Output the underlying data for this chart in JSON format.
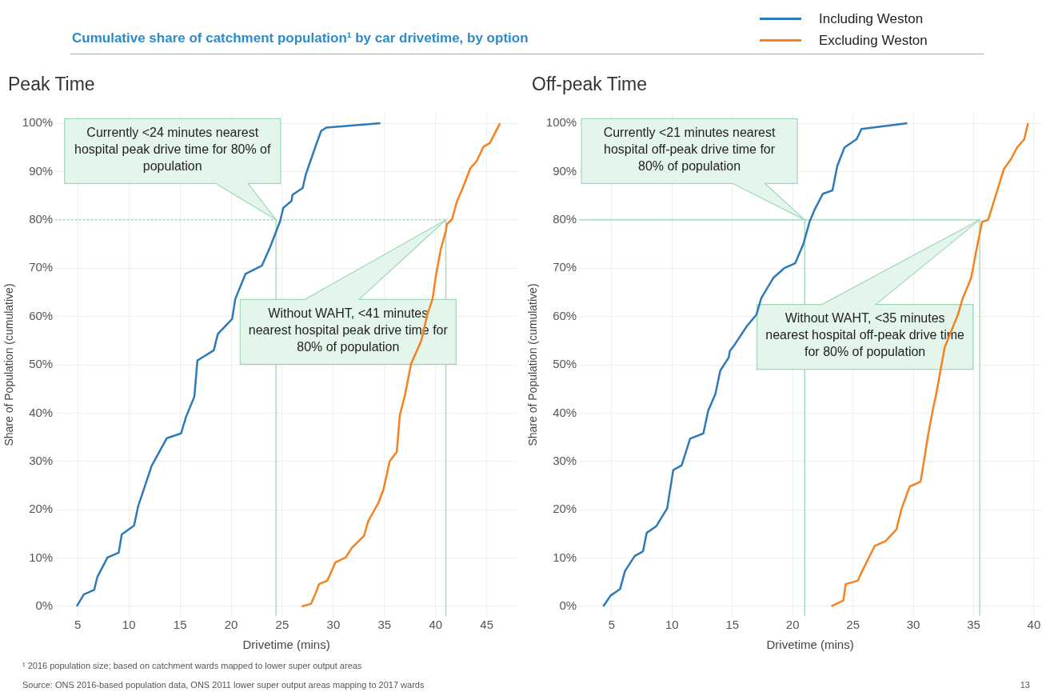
{
  "chart_data": [
    {
      "type": "line",
      "title": "Cumulative share of catchment population¹ by car drivetime, by option",
      "subtitle": "Peak Time",
      "xlabel": "Drivetime (mins)",
      "ylabel": "Share of Population (cumulative)",
      "series": [
        {
          "name": "Including Weston",
          "color": "#2e7ab8",
          "x": [
            4.9,
            5.6,
            6.6,
            6.9,
            7.9,
            9.0,
            9.3,
            10.5,
            10.9,
            12.1,
            12.2,
            13.7,
            15.1,
            15.6,
            16.4,
            16.7,
            18.3,
            18.7,
            20.1,
            20.4,
            21.4,
            23.0,
            23.8,
            24.8,
            25.1,
            25.9,
            26.0,
            27.0,
            27.3,
            28.3,
            28.8,
            29.3,
            34.6
          ],
          "values": [
            0,
            2.5,
            3.4,
            6,
            10.1,
            11.1,
            14.9,
            16.7,
            20.7,
            28.3,
            29,
            34.8,
            35.8,
            39.3,
            43.4,
            50.9,
            53,
            56.4,
            59.5,
            63.6,
            68.8,
            70.5,
            74.3,
            79.8,
            82.5,
            83.9,
            85.2,
            86.6,
            89.4,
            95.5,
            98.4,
            99.1,
            100
          ]
        },
        {
          "name": "Excluding Weston",
          "color": "#f5821f",
          "x": [
            26.9,
            27.8,
            28.3,
            28.6,
            29.4,
            30.2,
            31.2,
            31.8,
            33.0,
            33.4,
            34.4,
            34.9,
            35.5,
            36.2,
            36.5,
            37.0,
            37.6,
            38.6,
            39.2,
            39.7,
            40.0,
            40.5,
            41.0,
            41.1,
            41.6,
            42.1,
            42.6,
            43.4,
            44.0,
            44.7,
            45.3,
            46.3
          ],
          "values": [
            0,
            0.5,
            2.9,
            4.6,
            5.3,
            9.1,
            10.1,
            12.1,
            14.6,
            17.6,
            21.4,
            24.2,
            30,
            32,
            39.6,
            43.7,
            50.2,
            55,
            60.5,
            63.6,
            68.1,
            73.9,
            77.7,
            79.1,
            80.1,
            83.9,
            86.3,
            90.7,
            92.1,
            95.2,
            95.9,
            100
          ]
        }
      ],
      "xlim": [
        2.8,
        48
      ],
      "xticks": [
        5,
        10,
        15,
        20,
        25,
        30,
        35,
        40,
        45
      ],
      "ylim": [
        -2,
        102
      ],
      "yticks": [
        {
          "value": 0,
          "label": "0%"
        },
        {
          "value": 10,
          "label": "10%"
        },
        {
          "value": 20,
          "label": "20%"
        },
        {
          "value": 30,
          "label": "30%"
        },
        {
          "value": 40,
          "label": "40%"
        },
        {
          "value": 50,
          "label": "50%"
        },
        {
          "value": 60,
          "label": "60%"
        },
        {
          "value": 70,
          "label": "70%"
        },
        {
          "value": 80,
          "label": "80%"
        },
        {
          "value": 90,
          "label": "90%"
        },
        {
          "value": 100,
          "label": "100%"
        }
      ],
      "grid": true,
      "legend": "top right",
      "ref_lines": [
        {
          "axis": "y",
          "value": 80,
          "color": "#8fd1ac",
          "line_style": "dotted"
        },
        {
          "axis": "x",
          "value": 24.4,
          "color": "#a8dcc0",
          "line_style": "solid"
        },
        {
          "axis": "x",
          "value": 41,
          "color": "#a8dcc0",
          "line_style": "solid"
        }
      ],
      "annotations": [
        "Currently <24 minutes nearest hospital peak drive time for 80% of population",
        "Without WAHT, <41 minutes nearest hospital peak drive time for 80% of population",
        "¹ 2016 population size; based on catchment wards mapped to lower super output areas",
        "Source: ONS 2016-based population data, ONS 2011 lower super output areas mapping to 2017 wards"
      ]
    },
    {
      "type": "line",
      "subtitle": "Off-peak Time",
      "xlabel": "Drivetime (mins)",
      "ylabel": "Share of Population (cumulative)",
      "series": [
        {
          "color": "#2e7ab8",
          "x": [
            4.3,
            4.9,
            5.7,
            6.1,
            6.9,
            7.6,
            7.9,
            8.7,
            9.6,
            10.1,
            10.8,
            11.5,
            12.6,
            13.0,
            13.6,
            14.0,
            14.7,
            14.8,
            15.2,
            16.2,
            17.0,
            17.4,
            18.4,
            19.3,
            20.2,
            20.9,
            21.4,
            21.8,
            22.5,
            23.3,
            23.7,
            24.3,
            25.3,
            25.7,
            29.5
          ],
          "values": [
            0,
            2.2,
            3.6,
            7.3,
            10.4,
            11.4,
            15.2,
            16.6,
            20.3,
            28.2,
            29.2,
            34.7,
            35.8,
            40.5,
            44,
            48.8,
            51.5,
            52.9,
            54.2,
            58,
            60.4,
            63.8,
            68,
            70,
            71,
            75.1,
            79.6,
            82,
            85.4,
            86.1,
            91.2,
            95,
            96.7,
            98.8,
            100
          ]
        },
        {
          "color": "#f5821f",
          "x": [
            23.2,
            24.2,
            24.4,
            25.4,
            25.7,
            26.8,
            27.7,
            28.6,
            29.0,
            29.7,
            30.6,
            30.9,
            31.2,
            31.6,
            31.9,
            32.6,
            33.7,
            34.1,
            34.8,
            35.2,
            35.7,
            36.2,
            37.0,
            37.5,
            38.1,
            38.6,
            39.2,
            39.5
          ],
          "values": [
            0,
            1.2,
            4.6,
            5.3,
            7,
            12.5,
            13.5,
            15.9,
            20,
            24.8,
            25.8,
            30.3,
            35.1,
            40.5,
            44,
            53.6,
            60.4,
            63.8,
            68,
            73.4,
            79.6,
            80,
            86.4,
            90.5,
            92.6,
            95,
            96.7,
            100
          ]
        }
      ],
      "xlim": [
        2.3,
        40.6
      ],
      "xticks": [
        5,
        10,
        15,
        20,
        25,
        30,
        35,
        40
      ],
      "ylim": [
        -2,
        102
      ],
      "yticks": [
        {
          "value": 0,
          "label": "0%"
        },
        {
          "value": 10,
          "label": "10%"
        },
        {
          "value": 20,
          "label": "20%"
        },
        {
          "value": 30,
          "label": "30%"
        },
        {
          "value": 40,
          "label": "40%"
        },
        {
          "value": 50,
          "label": "50%"
        },
        {
          "value": 60,
          "label": "60%"
        },
        {
          "value": 70,
          "label": "70%"
        },
        {
          "value": 80,
          "label": "80%"
        },
        {
          "value": 90,
          "label": "90%"
        },
        {
          "value": 100,
          "label": "100%"
        }
      ],
      "grid": true,
      "ref_lines": [
        {
          "axis": "y",
          "value": 80,
          "color": "#a8dcc0",
          "line_style": "solid"
        },
        {
          "axis": "x",
          "value": 21,
          "color": "#a8dcc0",
          "line_style": "solid"
        },
        {
          "axis": "x",
          "value": 35.5,
          "color": "#a8dcc0",
          "line_style": "solid"
        }
      ],
      "annotations": [
        "Currently <21 minutes nearest hospital off-peak drive time for 80% of population",
        "Without WAHT, <35 minutes nearest hospital off-peak drive time for 80% of population",
        "13"
      ]
    }
  ]
}
